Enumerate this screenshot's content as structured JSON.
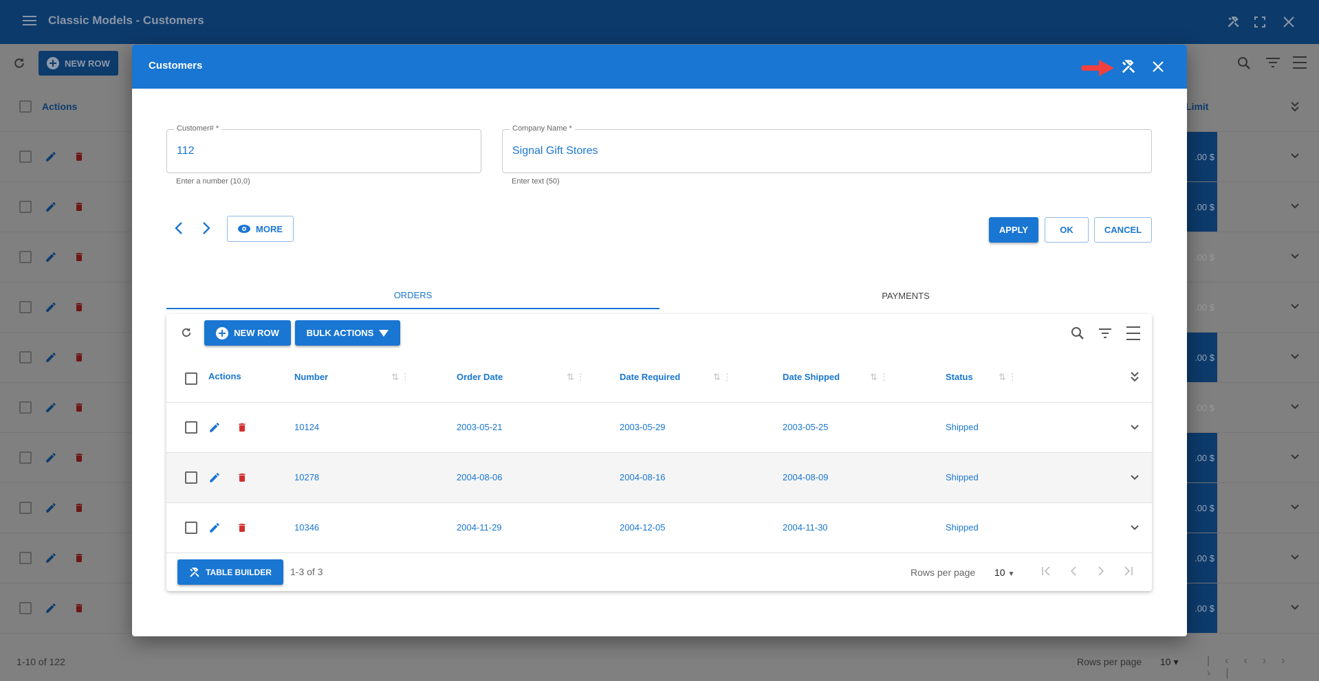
{
  "app": {
    "title": "Classic Models - Customers",
    "icons": [
      "menu-icon",
      "tools-icon",
      "fullscreen-icon",
      "close-icon"
    ]
  },
  "background": {
    "toolbar": {
      "new_row_label": "NEW ROW"
    },
    "header": {
      "actions_label": "Actions",
      "limit_label": "Limit"
    },
    "rows": [
      {
        "value": ".00 $",
        "highlight": true
      },
      {
        "value": ".00 $",
        "highlight": true
      },
      {
        "value": ".00 $",
        "highlight": false
      },
      {
        "value": ".00 $",
        "highlight": false
      },
      {
        "value": ".00 $",
        "highlight": true
      },
      {
        "value": ".00 $",
        "highlight": false
      },
      {
        "value": ".00 $",
        "highlight": true
      },
      {
        "value": ".00 $",
        "highlight": true
      },
      {
        "value": ".00 $",
        "highlight": true
      },
      {
        "value": ".00 $",
        "highlight": true
      }
    ],
    "footer": {
      "count": "1-10 of 122",
      "rows_per_page_label": "Rows per page",
      "rows_per_page": "10"
    }
  },
  "dialog": {
    "title": "Customers",
    "fields": {
      "customer_number": {
        "label": "Customer# *",
        "value": "112",
        "helper": "Enter a number (10,0)"
      },
      "company_name": {
        "label": "Company Name *",
        "value": "Signal Gift Stores",
        "helper": "Enter text (50)"
      }
    },
    "buttons": {
      "more": "MORE",
      "apply": "APPLY",
      "ok": "OK",
      "cancel": "CANCEL"
    },
    "tabs": [
      {
        "label": "ORDERS",
        "active": true
      },
      {
        "label": "PAYMENTS",
        "active": false
      }
    ],
    "orders": {
      "toolbar": {
        "new_row": "NEW ROW",
        "bulk_actions": "BULK ACTIONS"
      },
      "columns": [
        "Actions",
        "Number",
        "Order Date",
        "Date Required",
        "Date Shipped",
        "Status"
      ],
      "rows": [
        [
          "10124",
          "2003-05-21",
          "2003-05-29",
          "2003-05-25",
          "Shipped"
        ],
        [
          "10278",
          "2004-08-06",
          "2004-08-16",
          "2004-08-09",
          "Shipped"
        ],
        [
          "10346",
          "2004-11-29",
          "2004-12-05",
          "2004-11-30",
          "Shipped"
        ]
      ],
      "footer": {
        "table_builder": "TABLE BUILDER",
        "count": "1-3 of 3",
        "rows_per_page_label": "Rows per page",
        "rows_per_page": "10"
      }
    }
  },
  "colors": {
    "primary": "#1976d2",
    "topbar": "#0c3a6b",
    "delete": "#d32f2f",
    "annotation_arrow": "#f04040"
  }
}
